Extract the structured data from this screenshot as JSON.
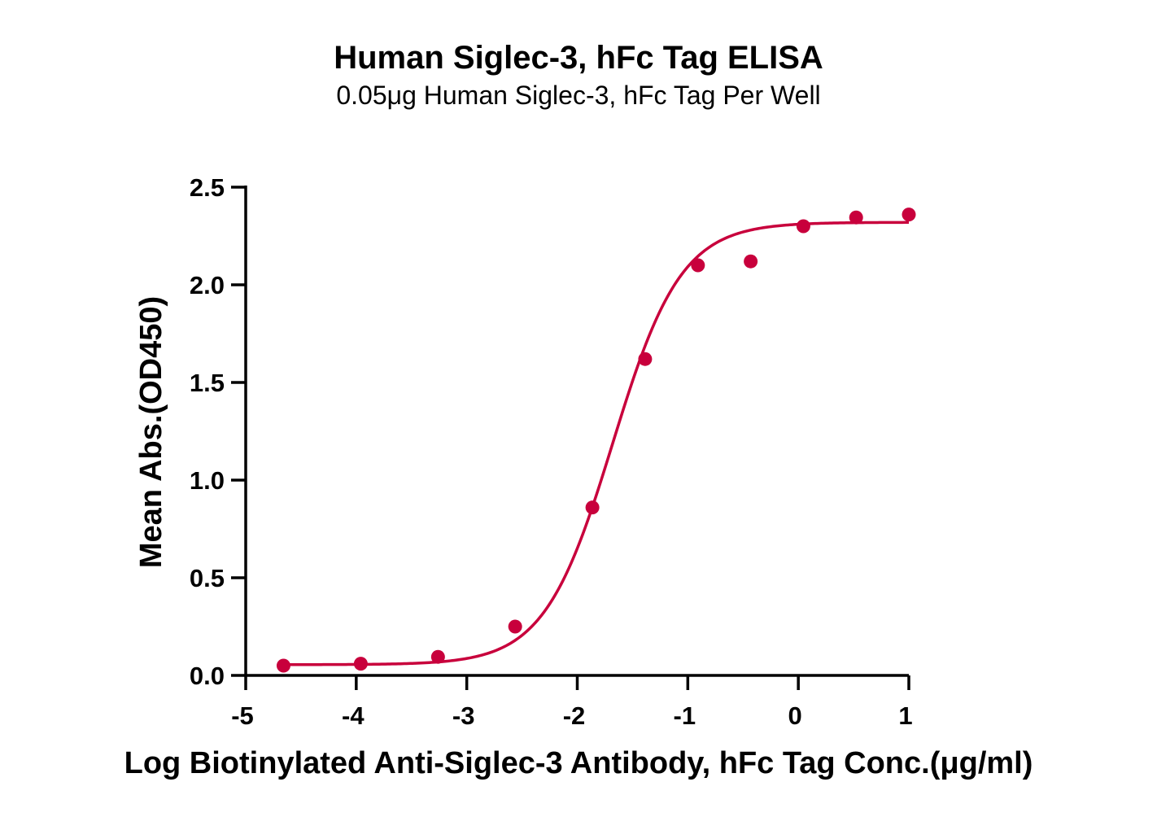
{
  "chart_data": {
    "type": "scatter",
    "title": "Human Siglec-3, hFc Tag ELISA",
    "subtitle": "0.05μg Human Siglec-3, hFc Tag Per Well",
    "xlabel": "Log Biotinylated Anti-Siglec-3 Antibody, hFc Tag Conc.(μg/ml)",
    "ylabel": "Mean Abs.(OD450)",
    "xlim": [
      -5,
      1
    ],
    "ylim": [
      0,
      2.5
    ],
    "x_ticks": [
      -5,
      -4,
      -3,
      -2,
      -1,
      0,
      1
    ],
    "x_tick_labels": [
      "-5",
      "-4",
      "-3",
      "-2",
      "-1",
      "0",
      "1"
    ],
    "y_ticks": [
      0,
      0.5,
      1,
      1.5,
      2,
      2.5
    ],
    "y_tick_labels": [
      "0.0",
      "0.5",
      "1.0",
      "1.5",
      "2.0",
      "2.5"
    ],
    "grid": false,
    "color": "#c8003c",
    "series": [
      {
        "x": [
          -4.658,
          -3.959,
          -3.26,
          -2.562,
          -1.863,
          -1.386,
          -0.908,
          -0.431,
          0.046,
          0.523,
          1.0
        ],
        "values": [
          0.05,
          0.06,
          0.095,
          0.25,
          0.86,
          1.62,
          2.1,
          2.12,
          2.3,
          2.345,
          2.36
        ],
        "fit": {
          "model": "4PL",
          "bottom": 0.055,
          "top": 2.32,
          "logEC50": -1.68,
          "hill": 1.4
        }
      }
    ]
  }
}
